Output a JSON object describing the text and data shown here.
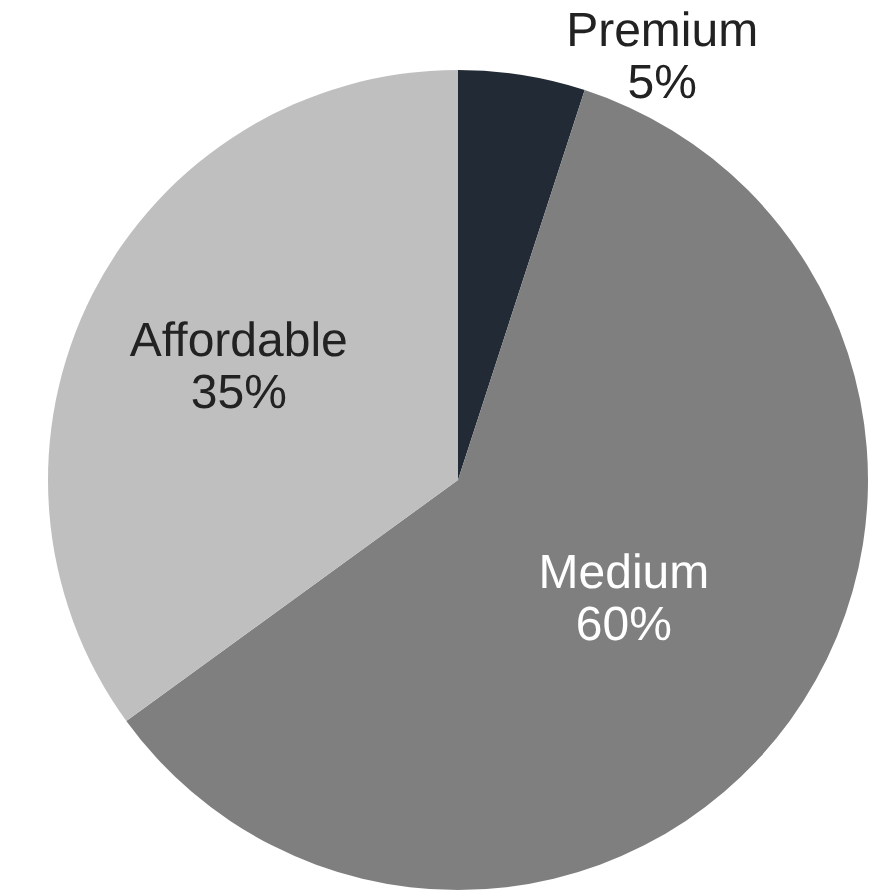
{
  "chart_data": {
    "type": "pie",
    "categories": [
      "Premium",
      "Medium",
      "Affordable"
    ],
    "values": [
      5,
      60,
      35
    ],
    "value_labels": [
      "5%",
      "60%",
      "35%"
    ],
    "colors": [
      "#222a35",
      "#7f7f7f",
      "#bfbfbf"
    ],
    "legend": false
  }
}
